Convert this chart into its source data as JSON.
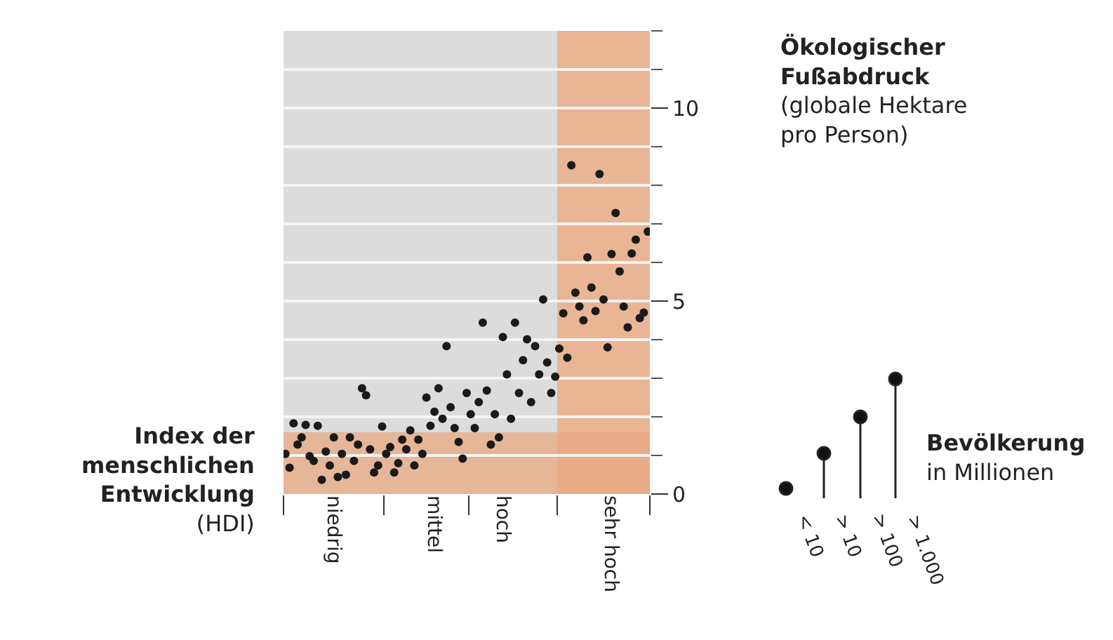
{
  "chart_data": {
    "type": "scatter",
    "xlabel": "Index der menschlichen Entwicklung (HDI)",
    "ylabel": "Ökologischer Fußabdruck (globale Hektare pro Person)",
    "categories": [
      null,
      null,
      null,
      null,
      null,
      null,
      null,
      null,
      null,
      null,
      null,
      null,
      "niedrig",
      null,
      null,
      null,
      null,
      null,
      null,
      null,
      null,
      null,
      null,
      null,
      null,
      null,
      null,
      null,
      null,
      null,
      null,
      null,
      null,
      null,
      null,
      null,
      null,
      "mittel",
      null,
      null,
      null,
      null,
      null,
      null,
      null,
      null,
      null,
      null,
      null,
      null,
      null,
      null,
      null,
      null,
      "hoch",
      null,
      null,
      null,
      null,
      null,
      null,
      null,
      null,
      null,
      null,
      null,
      null,
      null,
      null,
      null,
      null,
      null,
      null,
      null,
      null,
      null,
      null,
      null,
      null,
      null,
      null,
      "sehr hoch",
      null,
      null,
      null,
      null,
      null,
      null,
      null,
      null,
      null
    ],
    "values": [
      1.04,
      0.68,
      1.83,
      1.28,
      1.47,
      1.79,
      0.98,
      0.86,
      1.77,
      0.37,
      1.1,
      0.74,
      1.47,
      0.44,
      1.04,
      0.5,
      1.47,
      0.86,
      1.28,
      2.74,
      2.56,
      1.16,
      0.56,
      0.74,
      1.75,
      1.04,
      1.22,
      0.56,
      0.8,
      1.41,
      1.16,
      1.65,
      0.74,
      1.41,
      1.04,
      2.5,
      1.77,
      2.13,
      2.74,
      1.95,
      3.83,
      2.25,
      1.71,
      1.35,
      0.92,
      2.62,
      2.07,
      1.71,
      2.38,
      4.44,
      2.68,
      1.28,
      2.07,
      1.47,
      4.07,
      3.1,
      1.95,
      4.44,
      2.62,
      3.47,
      4.01,
      2.38,
      3.83,
      3.1,
      5.04,
      3.41,
      2.62,
      3.04,
      3.77,
      4.68,
      3.53,
      8.52,
      5.22,
      4.86,
      4.5,
      6.13,
      5.35,
      4.74,
      8.29,
      5.04,
      3.8,
      6.22,
      7.28,
      5.77,
      4.86,
      4.32,
      6.23,
      6.59,
      4.56,
      4.7,
      6.8
    ],
    "color": "#1a1a1a",
    "marker": "circle",
    "ylim": [
      0,
      12
    ],
    "yticks": [
      0,
      {
        "value": 1,
        "label": null
      },
      {
        "value": 2,
        "label": null
      },
      {
        "value": 3,
        "label": null
      },
      {
        "value": 4,
        "label": null
      },
      5,
      {
        "value": 6,
        "label": null
      },
      {
        "value": 7,
        "label": null
      },
      {
        "value": 8,
        "label": null
      },
      {
        "value": 9,
        "label": null
      },
      10,
      {
        "value": 11,
        "label": null
      },
      {
        "value": 12,
        "label": null
      }
    ],
    "grid": "y",
    "bands": [
      {
        "axis": "y",
        "from": 0,
        "to": 1.6,
        "color": "#e8a982"
      }
    ],
    "annotations": [
      "Bevölkerung in Millionen",
      "< 10",
      "> 10",
      "> 100",
      "> 1.000"
    ]
  }
}
